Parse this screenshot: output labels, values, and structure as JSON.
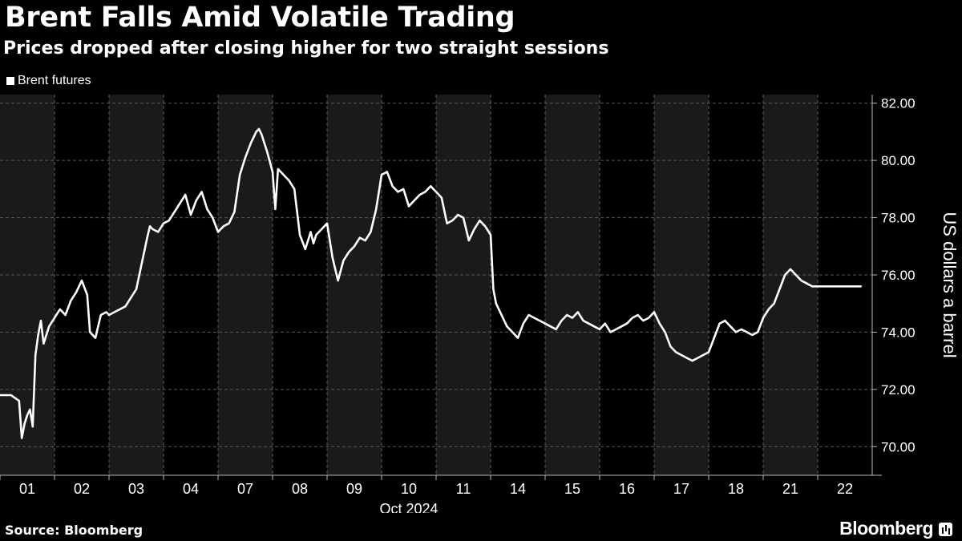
{
  "header": {
    "title": "Brent Falls Amid Volatile Trading",
    "subtitle": "Prices dropped after closing higher for two straight sessions"
  },
  "legend": {
    "label": "Brent futures"
  },
  "footer": {
    "source": "Source: Bloomberg",
    "brand": "Bloomberg"
  },
  "colors": {
    "background": "#000000",
    "line": "#ffffff",
    "shaded_band": "#1a1a1a",
    "grid": "#5a5a5a"
  },
  "chart_data": {
    "type": "line",
    "title": "Brent Falls Amid Volatile Trading",
    "subtitle": "Prices dropped after closing higher for two straight sessions",
    "ylabel": "US dollars a barrel",
    "xlabel": "Oct 2024",
    "ylim": [
      69,
      82.3
    ],
    "yticks": [
      70,
      72,
      74,
      76,
      78,
      80,
      82
    ],
    "ytick_labels": [
      "70.00",
      "72.00",
      "74.00",
      "76.00",
      "78.00",
      "80.00",
      "82.00"
    ],
    "y_axis_side": "right",
    "grid": true,
    "legend_position": "top-left",
    "days": [
      "01",
      "02",
      "03",
      "04",
      "07",
      "08",
      "09",
      "10",
      "11",
      "14",
      "15",
      "16",
      "17",
      "18",
      "21",
      "22"
    ],
    "shaded_days": [
      "01",
      "03",
      "07",
      "09",
      "11",
      "15",
      "17",
      "21"
    ],
    "series": [
      {
        "name": "Brent futures",
        "x": [
          0,
          0.2,
          0.35,
          0.4,
          0.45,
          0.5,
          0.55,
          0.6,
          0.65,
          0.7,
          0.75,
          0.8,
          0.9,
          1.0,
          1.1,
          1.2,
          1.3,
          1.4,
          1.5,
          1.6,
          1.65,
          1.75,
          1.85,
          1.95,
          2.0,
          2.1,
          2.2,
          2.3,
          2.4,
          2.5,
          2.6,
          2.7,
          2.75,
          2.8,
          2.9,
          3.0,
          3.1,
          3.2,
          3.3,
          3.4,
          3.5,
          3.6,
          3.7,
          3.8,
          3.9,
          4.0,
          4.1,
          4.2,
          4.3,
          4.4,
          4.5,
          4.6,
          4.7,
          4.75,
          4.8,
          4.9,
          5.0,
          5.05,
          5.1,
          5.2,
          5.3,
          5.4,
          5.5,
          5.6,
          5.7,
          5.75,
          5.8,
          5.9,
          6.0,
          6.05,
          6.1,
          6.2,
          6.3,
          6.4,
          6.5,
          6.6,
          6.7,
          6.8,
          6.9,
          7.0,
          7.1,
          7.2,
          7.3,
          7.4,
          7.5,
          7.6,
          7.7,
          7.8,
          7.9,
          8.0,
          8.1,
          8.2,
          8.3,
          8.4,
          8.5,
          8.6,
          8.7,
          8.8,
          8.9,
          9.0,
          9.05,
          9.1,
          9.2,
          9.3,
          9.4,
          9.5,
          9.6,
          9.7,
          9.8,
          9.9,
          10.0,
          10.1,
          10.2,
          10.3,
          10.4,
          10.5,
          10.6,
          10.7,
          10.8,
          10.9,
          11.0,
          11.1,
          11.2,
          11.3,
          11.4,
          11.5,
          11.6,
          11.7,
          11.8,
          11.9,
          12.0,
          12.1,
          12.2,
          12.3,
          12.4,
          12.5,
          12.6,
          12.7,
          12.8,
          12.9,
          13.0,
          13.1,
          13.2,
          13.3,
          13.4,
          13.5,
          13.6,
          13.7,
          13.8,
          13.9,
          14.0,
          14.1,
          14.2,
          14.3,
          14.4,
          14.5,
          14.6,
          14.7,
          14.8,
          14.9,
          15.0,
          15.1,
          15.2,
          15.3,
          15.4,
          15.5,
          15.6,
          15.7,
          15.8
        ],
        "y": [
          71.8,
          71.8,
          71.6,
          70.3,
          70.8,
          71.1,
          71.3,
          70.7,
          73.2,
          73.9,
          74.4,
          73.6,
          74.2,
          74.5,
          74.8,
          74.6,
          75.1,
          75.4,
          75.8,
          75.3,
          74.0,
          73.8,
          74.6,
          74.7,
          74.6,
          74.7,
          74.8,
          74.9,
          75.2,
          75.5,
          76.4,
          77.3,
          77.7,
          77.6,
          77.5,
          77.8,
          77.9,
          78.2,
          78.5,
          78.8,
          78.1,
          78.6,
          78.9,
          78.3,
          78.0,
          77.5,
          77.7,
          77.8,
          78.2,
          79.5,
          80.1,
          80.6,
          81.0,
          81.1,
          80.9,
          80.3,
          79.6,
          78.3,
          79.7,
          79.5,
          79.3,
          79.0,
          77.4,
          76.9,
          77.5,
          77.1,
          77.4,
          77.6,
          77.8,
          77.2,
          76.6,
          75.8,
          76.5,
          76.8,
          77.0,
          77.3,
          77.2,
          77.5,
          78.3,
          79.5,
          79.6,
          79.1,
          78.9,
          79.0,
          78.4,
          78.6,
          78.8,
          78.9,
          79.1,
          78.9,
          78.7,
          77.8,
          77.9,
          78.1,
          78.0,
          77.2,
          77.6,
          77.9,
          77.7,
          77.4,
          75.5,
          75.0,
          74.6,
          74.2,
          74.0,
          73.8,
          74.3,
          74.6,
          74.5,
          74.4,
          74.3,
          74.2,
          74.1,
          74.4,
          74.6,
          74.5,
          74.7,
          74.4,
          74.3,
          74.2,
          74.1,
          74.3,
          74.0,
          74.1,
          74.2,
          74.3,
          74.5,
          74.6,
          74.4,
          74.5,
          74.7,
          74.3,
          74.0,
          73.5,
          73.3,
          73.2,
          73.1,
          73.0,
          73.1,
          73.2,
          73.3,
          73.8,
          74.3,
          74.4,
          74.2,
          74.0,
          74.1,
          74.0,
          73.9,
          74.0,
          74.5,
          74.8,
          75.0,
          75.5,
          76.0,
          76.2,
          76.0,
          75.8,
          75.7,
          75.6,
          75.6,
          75.6,
          75.6,
          75.6,
          75.6,
          75.6,
          75.6,
          75.6,
          75.6
        ]
      }
    ]
  }
}
